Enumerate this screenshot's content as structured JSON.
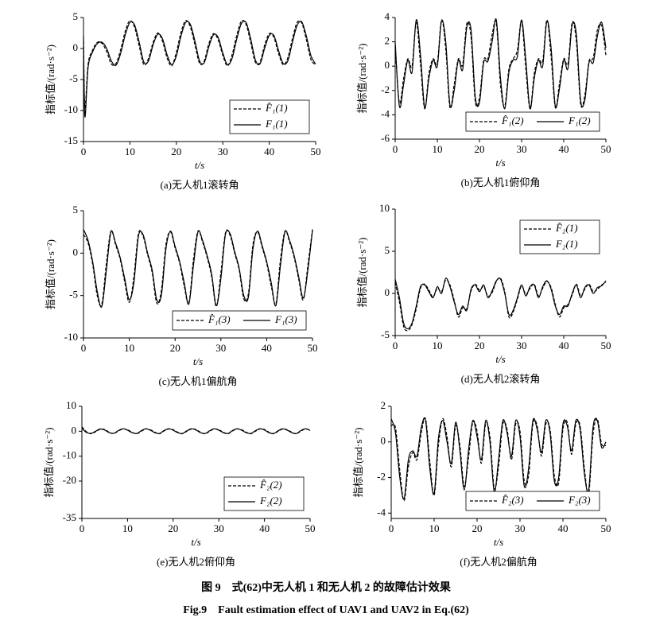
{
  "figure": {
    "caption_cn": "图 9　式(62)中无人机 1 和无人机 2 的故障估计效果",
    "caption_en": "Fig.9　Fault estimation effect of UAV1 and UAV2 in Eq.(62)"
  },
  "chart_data": [
    {
      "type": "line",
      "caption": "(a)无人机1滚转角",
      "xlabel": "t/s",
      "ylabel": "指标值/(rad·s⁻²)",
      "x": [
        0,
        0.3,
        1,
        2,
        3,
        4,
        5,
        6,
        7,
        8,
        9,
        10,
        11,
        12,
        13,
        14,
        15,
        16,
        17,
        18,
        19,
        20,
        21,
        22,
        23,
        24,
        25,
        26,
        27,
        28,
        29,
        30,
        31,
        32,
        33,
        34,
        35,
        36,
        37,
        38,
        39,
        40,
        41,
        42,
        43,
        44,
        45,
        46,
        47,
        48,
        49,
        50
      ],
      "xlim": [
        0,
        50
      ],
      "xticks": [
        0,
        10,
        20,
        30,
        40,
        50
      ],
      "ylim": [
        -15,
        5
      ],
      "yticks": [
        5,
        0,
        -5,
        -10,
        -15
      ],
      "legend": "lower right",
      "legend_layout": "column",
      "series": [
        {
          "name": "F̂₁(1)",
          "color": "#000000",
          "style": "dashed",
          "values": [
            2.0,
            -9.5,
            -2.5,
            -0.2,
            1.0,
            0.8,
            -0.5,
            -2.5,
            -2.4,
            -0.2,
            2.8,
            4.5,
            3.4,
            0.4,
            -2.6,
            -1.6,
            1.0,
            2.5,
            1.2,
            -1.5,
            -2.8,
            -0.6,
            2.6,
            4.5,
            3.5,
            0.6,
            -2.4,
            -2.0,
            0.8,
            2.4,
            1.4,
            -1.1,
            -2.8,
            -1.0,
            2.1,
            4.4,
            3.9,
            1.0,
            -2.2,
            -2.2,
            0.5,
            2.4,
            1.8,
            -0.8,
            -2.6,
            -1.5,
            1.6,
            4.2,
            4.1,
            1.4,
            -1.8,
            -2.6
          ]
        },
        {
          "name": "F₁(1)",
          "color": "#000000",
          "style": "solid",
          "values": [
            1.5,
            -11,
            -3,
            -0.5,
            0.8,
            1.0,
            0.0,
            -2.0,
            -2.7,
            -0.8,
            2.2,
            4.2,
            3.8,
            1.0,
            -2.2,
            -2.0,
            0.6,
            2.3,
            1.6,
            -1.0,
            -2.6,
            -1.2,
            2.0,
            4.2,
            3.9,
            1.2,
            -2.0,
            -2.3,
            0.3,
            2.2,
            1.8,
            -0.7,
            -2.6,
            -1.6,
            1.5,
            4.0,
            4.2,
            1.6,
            -1.8,
            -2.5,
            0.0,
            2.1,
            2.1,
            -0.3,
            -2.4,
            -2.0,
            1.0,
            3.7,
            4.3,
            2.0,
            -1.2,
            -2.5
          ]
        }
      ]
    },
    {
      "type": "line",
      "caption": "(b)无人机1俯仰角",
      "xlabel": "t/s",
      "ylabel": "指标值/(rad·s⁻²)",
      "x": [
        0,
        1,
        2,
        3,
        4,
        5,
        6,
        7,
        8,
        9,
        10,
        11,
        12,
        13,
        14,
        15,
        16,
        17,
        18,
        19,
        20,
        21,
        22,
        23,
        24,
        25,
        26,
        27,
        28,
        29,
        30,
        31,
        32,
        33,
        34,
        35,
        36,
        37,
        38,
        39,
        40,
        41,
        42,
        43,
        44,
        45,
        46,
        47,
        48,
        49,
        50
      ],
      "xlim": [
        0,
        50
      ],
      "xticks": [
        0,
        10,
        20,
        30,
        40,
        50
      ],
      "ylim": [
        -6,
        4
      ],
      "yticks": [
        4,
        2,
        0,
        -2,
        -4,
        -6
      ],
      "legend": "lower right",
      "legend_layout": "row",
      "series": [
        {
          "name": "F̂₁(2)",
          "color": "#000000",
          "style": "dashed",
          "values": [
            1.6,
            -3.0,
            -1.0,
            0.6,
            0.0,
            3.6,
            0.2,
            -3.5,
            -0.6,
            0.6,
            0.3,
            3.8,
            1.4,
            -3.4,
            -1.5,
            0.6,
            0.1,
            3.5,
            2.4,
            -2.9,
            -2.6,
            0.5,
            0.6,
            2.6,
            3.5,
            -1.6,
            -3.3,
            -0.2,
            0.6,
            1.3,
            3.7,
            -0.2,
            -3.5,
            -0.6,
            0.6,
            0.4,
            3.8,
            0.8,
            -3.4,
            -1.4,
            0.6,
            0.2,
            3.6,
            2.0,
            -3.1,
            -2.4,
            0.4,
            0.7,
            3.0,
            3.3,
            0.9
          ]
        },
        {
          "name": "F₁(2)",
          "color": "#000000",
          "style": "solid",
          "values": [
            2.0,
            -3.3,
            -1.5,
            0.5,
            -0.5,
            3.8,
            1.0,
            -3.4,
            -1.0,
            0.5,
            0.0,
            3.7,
            2.0,
            -3.2,
            -2.0,
            0.5,
            -0.3,
            3.2,
            3.0,
            -2.5,
            -3.0,
            0.3,
            0.4,
            2.0,
            3.8,
            -1.0,
            -3.5,
            -0.5,
            0.5,
            0.8,
            3.8,
            0.5,
            -3.5,
            -1.0,
            0.5,
            0.0,
            3.7,
            1.5,
            -3.3,
            -1.8,
            0.5,
            -0.2,
            3.4,
            2.6,
            -2.8,
            -2.8,
            0.3,
            0.3,
            2.5,
            3.6,
            1.5
          ]
        }
      ]
    },
    {
      "type": "line",
      "caption": "(c)无人机1偏航角",
      "xlabel": "t/s",
      "ylabel": "指标值/(rad·s⁻²)",
      "x": [
        0,
        1,
        2,
        3,
        4,
        5,
        6,
        7,
        8,
        9,
        10,
        11,
        12,
        13,
        14,
        15,
        16,
        17,
        18,
        19,
        20,
        21,
        22,
        23,
        24,
        25,
        26,
        27,
        28,
        29,
        30,
        31,
        32,
        33,
        34,
        35,
        36,
        37,
        38,
        39,
        40,
        41,
        42,
        43,
        44,
        45,
        46,
        47,
        48,
        49,
        50
      ],
      "xlim": [
        0,
        50
      ],
      "xticks": [
        0,
        10,
        20,
        30,
        40,
        50
      ],
      "ylim": [
        -10,
        5
      ],
      "yticks": [
        5,
        0,
        -5,
        -10
      ],
      "legend": "lower right",
      "legend_layout": "row",
      "series": [
        {
          "name": "F̂₁(3)",
          "color": "#000000",
          "style": "dashed",
          "values": [
            2.2,
            1.2,
            -1.3,
            -5.0,
            -6.0,
            -1.2,
            2.6,
            1.0,
            -0.7,
            -3.4,
            -5.8,
            -2.8,
            2.3,
            2.0,
            -0.2,
            -2.3,
            -5.9,
            -4.4,
            1.0,
            2.5,
            0.6,
            -1.2,
            -3.9,
            -5.9,
            -0.8,
            2.6,
            1.3,
            -0.5,
            -2.8,
            -6.3,
            -2.3,
            2.4,
            2.1,
            0.0,
            -2.0,
            -5.4,
            -4.8,
            1.0,
            2.5,
            0.7,
            -1.2,
            -3.9,
            -6.0,
            -0.8,
            2.6,
            1.3,
            -0.5,
            -3.1,
            -5.5,
            -1.4,
            2.8
          ]
        },
        {
          "name": "F₁(3)",
          "color": "#000000",
          "style": "solid",
          "values": [
            2.8,
            1.5,
            -1.0,
            -4.5,
            -6.3,
            -2.0,
            2.5,
            1.2,
            -0.5,
            -3.0,
            -5.5,
            -3.5,
            2.0,
            2.2,
            0.0,
            -2.0,
            -5.5,
            -5.0,
            0.5,
            2.6,
            0.8,
            -1.0,
            -3.5,
            -6.0,
            -1.5,
            2.5,
            1.5,
            -0.3,
            -2.5,
            -6.2,
            -3.0,
            2.2,
            2.3,
            0.2,
            -1.8,
            -5.0,
            -5.2,
            0.5,
            2.6,
            0.9,
            -1.0,
            -3.5,
            -6.2,
            -1.5,
            2.5,
            1.5,
            -0.3,
            -2.8,
            -5.3,
            -2.0,
            2.7
          ]
        }
      ]
    },
    {
      "type": "line",
      "caption": "(d)无人机2滚转角",
      "xlabel": "t/s",
      "ylabel": "指标值/(rad·s⁻²)",
      "x": [
        0,
        1,
        2,
        3,
        4,
        5,
        6,
        7,
        8,
        9,
        10,
        11,
        12,
        13,
        14,
        15,
        16,
        17,
        18,
        19,
        20,
        21,
        22,
        23,
        24,
        25,
        26,
        27,
        28,
        29,
        30,
        31,
        32,
        33,
        34,
        35,
        36,
        37,
        38,
        39,
        40,
        41,
        42,
        43,
        44,
        45,
        46,
        47,
        48,
        49,
        50
      ],
      "xlim": [
        0,
        50
      ],
      "xticks": [
        0,
        10,
        20,
        30,
        40,
        50
      ],
      "ylim": [
        -5,
        10
      ],
      "yticks": [
        10,
        5,
        0,
        -5
      ],
      "legend": "upper right",
      "legend_layout": "column",
      "series": [
        {
          "name": "F̂₂(1)",
          "color": "#000000",
          "style": "dashed",
          "values": [
            1.3,
            -1.0,
            -3.9,
            -4.4,
            -3.7,
            -1.8,
            0.6,
            1.1,
            0.4,
            -0.4,
            0.6,
            0.2,
            1.6,
            1.0,
            -0.8,
            -2.8,
            -1.7,
            -1.8,
            0.3,
            1.1,
            0.4,
            0.8,
            -0.3,
            0.1,
            1.4,
            1.8,
            0.2,
            -2.8,
            -2.2,
            -0.7,
            0.9,
            -0.1,
            0.6,
            1.1,
            -0.3,
            0.6,
            1.4,
            0.7,
            -1.3,
            -2.8,
            -1.7,
            -1.3,
            -0.2,
            1.1,
            -0.3,
            0.5,
            1.1,
            0.2,
            0.5,
            1.0,
            1.3
          ]
        },
        {
          "name": "F₂(1)",
          "color": "#000000",
          "style": "solid",
          "values": [
            1.7,
            -0.5,
            -3.5,
            -4.2,
            -3.5,
            -1.5,
            0.8,
            1.0,
            0.2,
            -0.5,
            0.8,
            0.0,
            1.8,
            0.8,
            -1.0,
            -2.5,
            -1.5,
            -2.0,
            0.5,
            1.0,
            0.2,
            1.0,
            -0.5,
            0.3,
            1.5,
            1.7,
            0.0,
            -2.5,
            -2.0,
            -0.5,
            1.0,
            -0.3,
            0.8,
            1.0,
            -0.5,
            0.8,
            1.5,
            0.5,
            -1.5,
            -2.5,
            -1.5,
            -1.5,
            0.0,
            1.0,
            -0.5,
            0.7,
            1.0,
            0.0,
            0.7,
            0.9,
            1.5
          ]
        }
      ]
    },
    {
      "type": "line",
      "caption": "(e)无人机2俯仰角",
      "xlabel": "t/s",
      "ylabel": "指标值/(rad·s⁻²)",
      "x": [
        0,
        1,
        2,
        3,
        4,
        5,
        6,
        7,
        8,
        9,
        10,
        11,
        12,
        13,
        14,
        15,
        16,
        17,
        18,
        19,
        20,
        21,
        22,
        23,
        24,
        25,
        26,
        27,
        28,
        29,
        30,
        31,
        32,
        33,
        34,
        35,
        36,
        37,
        38,
        39,
        40,
        41,
        42,
        43,
        44,
        45,
        46,
        47,
        48,
        49,
        50
      ],
      "xlim": [
        0,
        50
      ],
      "xticks": [
        0,
        10,
        20,
        30,
        40,
        50
      ],
      "ylim": [
        -35,
        10
      ],
      "yticks": [
        10,
        0,
        -10,
        -20,
        -35
      ],
      "legend": "lower right",
      "legend_layout": "column",
      "series": [
        {
          "name": "F̂₂(2)",
          "color": "#000000",
          "style": "dashed",
          "values": [
            1.8,
            -0.2,
            -1.0,
            -0.2,
            0.8,
            0.7,
            -0.4,
            -0.9,
            0.1,
            0.9,
            0.6,
            -0.4,
            -1.0,
            0.0,
            0.9,
            0.6,
            -0.4,
            -1.0,
            0.1,
            0.9,
            0.6,
            -0.4,
            -1.0,
            0.0,
            0.9,
            0.7,
            -0.4,
            -1.0,
            0.0,
            0.9,
            0.6,
            -0.4,
            -1.0,
            0.1,
            0.9,
            0.6,
            -0.4,
            -1.0,
            0.0,
            0.9,
            0.7,
            -0.4,
            -1.0,
            0.0,
            0.9,
            0.6,
            -0.4,
            -1.0,
            0.1,
            0.9,
            0.5
          ]
        },
        {
          "name": "F₂(2)",
          "color": "#000000",
          "style": "solid",
          "values": [
            1.2,
            -0.5,
            -0.8,
            0.0,
            0.9,
            0.5,
            -0.6,
            -0.8,
            0.3,
            1.0,
            0.4,
            -0.6,
            -0.9,
            0.2,
            1.0,
            0.4,
            -0.6,
            -0.9,
            0.3,
            1.0,
            0.4,
            -0.6,
            -0.9,
            0.2,
            1.0,
            0.5,
            -0.6,
            -0.9,
            0.2,
            1.0,
            0.4,
            -0.6,
            -0.9,
            0.3,
            1.0,
            0.4,
            -0.6,
            -0.9,
            0.2,
            1.0,
            0.5,
            -0.6,
            -0.9,
            0.2,
            1.0,
            0.4,
            -0.6,
            -0.9,
            0.3,
            1.0,
            0.3
          ]
        }
      ]
    },
    {
      "type": "line",
      "caption": "(f)无人机2偏航角",
      "xlabel": "t/s",
      "ylabel": "指标值/(rad·s⁻²)",
      "x": [
        0,
        1,
        2,
        3,
        4,
        5,
        6,
        7,
        8,
        9,
        10,
        11,
        12,
        13,
        14,
        15,
        16,
        17,
        18,
        19,
        20,
        21,
        22,
        23,
        24,
        25,
        26,
        27,
        28,
        29,
        30,
        31,
        32,
        33,
        34,
        35,
        36,
        37,
        38,
        39,
        40,
        41,
        42,
        43,
        44,
        45,
        46,
        47,
        48,
        49,
        50
      ],
      "xlim": [
        0,
        50
      ],
      "xticks": [
        0,
        10,
        20,
        30,
        40,
        50
      ],
      "ylim": [
        -4.3,
        2
      ],
      "yticks": [
        2,
        0,
        -2,
        -4
      ],
      "legend": "lower right",
      "legend_layout": "row",
      "series": [
        {
          "name": "F̂₂(3)",
          "color": "#000000",
          "style": "dashed",
          "values": [
            0.9,
            0.8,
            -1.6,
            -3.3,
            -1.4,
            -0.6,
            -1.0,
            0.5,
            1.3,
            -1.1,
            -3.0,
            -0.2,
            1.3,
            0.3,
            -1.4,
            0.9,
            -0.2,
            -2.5,
            -0.9,
            1.1,
            0.6,
            -1.2,
            1.0,
            0.3,
            -2.6,
            -1.4,
            1.0,
            0.7,
            -1.0,
            1.0,
            0.6,
            -2.2,
            -1.9,
            1.0,
            0.9,
            -0.8,
            1.0,
            0.7,
            -1.9,
            -2.3,
            0.7,
            1.1,
            -0.7,
            1.0,
            0.9,
            -1.5,
            -2.9,
            0.4,
            1.3,
            -0.1,
            -0.2
          ]
        },
        {
          "name": "F₂(3)",
          "color": "#000000",
          "style": "solid",
          "values": [
            1.3,
            0.5,
            -2.0,
            -3.2,
            -1.0,
            -0.5,
            -0.8,
            0.8,
            1.2,
            -1.5,
            -2.9,
            0.2,
            1.2,
            0.0,
            -1.2,
            1.1,
            -0.5,
            -2.7,
            -0.5,
            1.2,
            0.3,
            -1.0,
            1.2,
            0.0,
            -2.8,
            -1.0,
            1.2,
            0.5,
            -0.8,
            1.2,
            0.3,
            -2.5,
            -1.5,
            1.2,
            0.7,
            -0.6,
            1.2,
            0.5,
            -2.2,
            -2.0,
            1.0,
            0.9,
            -0.5,
            1.2,
            0.7,
            -1.8,
            -2.7,
            0.8,
            1.2,
            -0.3,
            0.0
          ]
        }
      ]
    }
  ]
}
